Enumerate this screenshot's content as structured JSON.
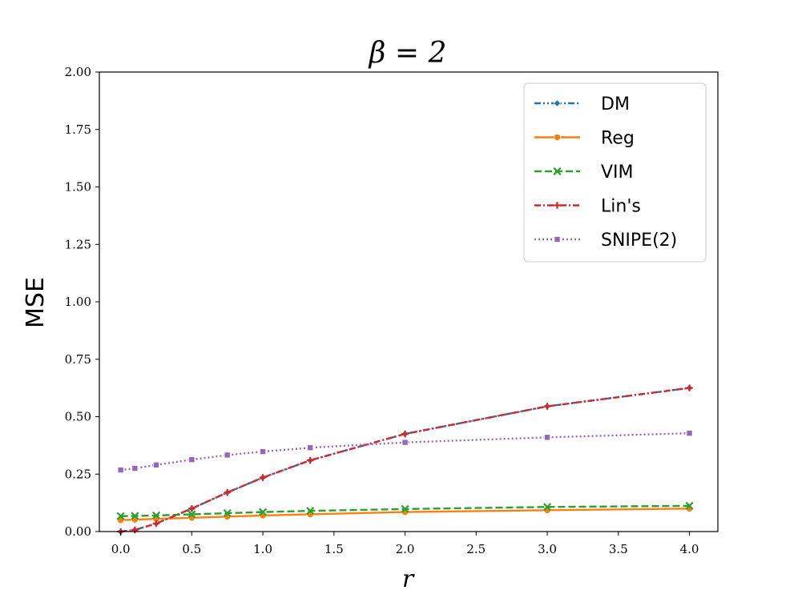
{
  "chart_data": {
    "type": "line",
    "title": "β = 2",
    "xlabel": "r",
    "ylabel": "MSE",
    "xlim": [
      -0.15,
      4.2
    ],
    "ylim": [
      0,
      2.0
    ],
    "xticks": [
      "0.0",
      "0.5",
      "1.0",
      "1.5",
      "2.0",
      "2.5",
      "3.0",
      "3.5",
      "4.0"
    ],
    "yticks": [
      "0.00",
      "0.25",
      "0.50",
      "0.75",
      "1.00",
      "1.25",
      "1.50",
      "1.75",
      "2.00"
    ],
    "grid": false,
    "legend_position": "top-right",
    "series": [
      {
        "name": "DM",
        "color": "#1f77b4",
        "linestyle": "dashdotdot",
        "marker": "diamond",
        "x": [
          0.0,
          0.1,
          0.25,
          0.5,
          0.75,
          1.0,
          1.333,
          2.0,
          3.0,
          4.0
        ],
        "y": [
          0.0,
          0.007,
          0.035,
          0.1,
          0.17,
          0.235,
          0.31,
          0.425,
          0.545,
          0.625
        ]
      },
      {
        "name": "Reg",
        "color": "#ff7f0e",
        "linestyle": "solid",
        "marker": "circle",
        "x": [
          0.0,
          0.1,
          0.25,
          0.5,
          0.75,
          1.0,
          1.333,
          2.0,
          3.0,
          4.0
        ],
        "y": [
          0.05,
          0.052,
          0.055,
          0.06,
          0.065,
          0.07,
          0.075,
          0.085,
          0.093,
          0.1
        ]
      },
      {
        "name": "VIM",
        "color": "#2ca02c",
        "linestyle": "dashed",
        "marker": "x",
        "x": [
          0.0,
          0.1,
          0.25,
          0.5,
          0.75,
          1.0,
          1.333,
          2.0,
          3.0,
          4.0
        ],
        "y": [
          0.067,
          0.068,
          0.07,
          0.075,
          0.08,
          0.085,
          0.09,
          0.098,
          0.107,
          0.112
        ]
      },
      {
        "name": "Lin's",
        "color": "#d62728",
        "linestyle": "dashdot",
        "marker": "plus",
        "x": [
          0.0,
          0.1,
          0.25,
          0.5,
          0.75,
          1.0,
          1.333,
          2.0,
          3.0,
          4.0
        ],
        "y": [
          0.0,
          0.007,
          0.035,
          0.1,
          0.17,
          0.235,
          0.31,
          0.425,
          0.545,
          0.625
        ]
      },
      {
        "name": "SNIPE(2)",
        "color": "#9467bd",
        "linestyle": "dotted",
        "marker": "square",
        "x": [
          0.0,
          0.1,
          0.25,
          0.5,
          0.75,
          1.0,
          1.333,
          2.0,
          3.0,
          4.0
        ],
        "y": [
          0.268,
          0.275,
          0.29,
          0.313,
          0.333,
          0.348,
          0.365,
          0.388,
          0.41,
          0.428
        ]
      }
    ]
  }
}
